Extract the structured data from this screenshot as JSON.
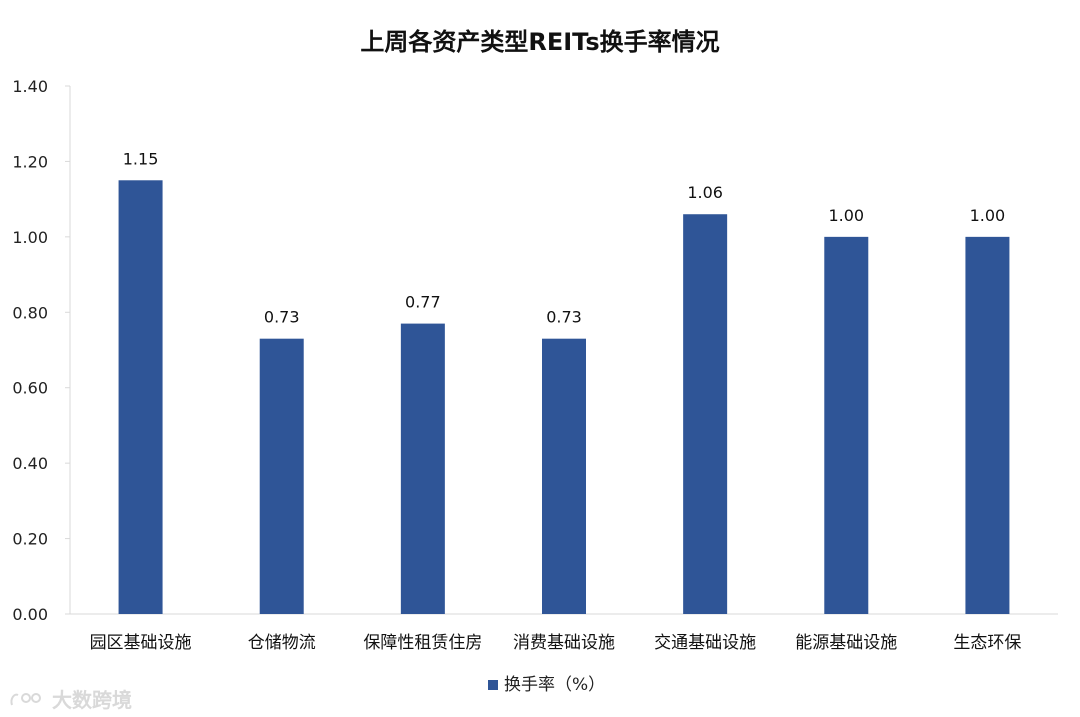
{
  "chart_data": {
    "type": "bar",
    "title": "上周各资产类型REITs换手率情况",
    "categories": [
      "园区基础设施",
      "仓储物流",
      "保障性租赁住房",
      "消费基础设施",
      "交通基础设施",
      "能源基础设施",
      "生态环保"
    ],
    "series": [
      {
        "name": "换手率（%）",
        "values": [
          1.15,
          0.73,
          0.77,
          0.73,
          1.06,
          1.0,
          1.0
        ],
        "labels": [
          "1.15",
          "0.73",
          "0.77",
          "0.73",
          "1.06",
          "1.00",
          "1.00"
        ],
        "color": "#2F5597"
      }
    ],
    "ylim": [
      0,
      1.4
    ],
    "yticks": [
      "0.00",
      "0.20",
      "0.40",
      "0.60",
      "0.80",
      "1.00",
      "1.20",
      "1.40"
    ],
    "xlabel": "",
    "ylabel": "",
    "grid": false,
    "legend_position": "bottom"
  },
  "watermark": {
    "text": "大数跨境"
  }
}
